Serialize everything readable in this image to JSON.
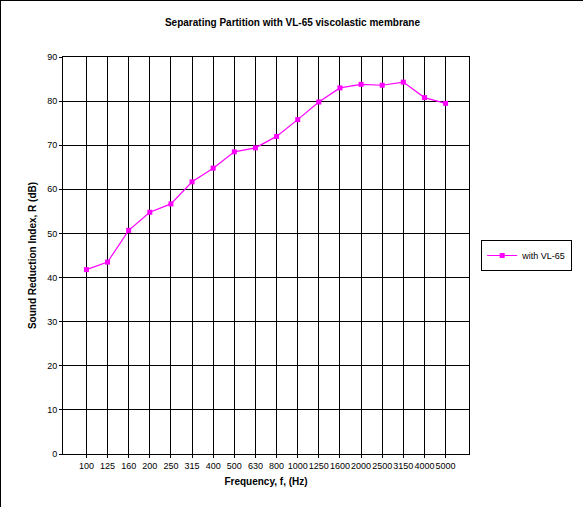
{
  "chart_data": {
    "type": "line",
    "title": "Separating Partition with VL-65 viscolastic membrane",
    "x_label": "Frequency, f, (Hz)",
    "y_label": "Sound Reduction Index, R (dB)",
    "categories": [
      "100",
      "125",
      "160",
      "200",
      "250",
      "315",
      "400",
      "500",
      "630",
      "800",
      "1000",
      "1250",
      "1600",
      "2000",
      "2500",
      "3150",
      "4000",
      "5000"
    ],
    "series": [
      {
        "name": "with VL-65",
        "color": "#ff00ff",
        "marker": "square",
        "values": [
          41.8,
          43.5,
          50.7,
          54.8,
          56.7,
          61.7,
          64.8,
          68.5,
          69.4,
          72.0,
          75.8,
          79.8,
          83.0,
          83.8,
          83.6,
          84.3,
          80.8,
          79.5
        ]
      }
    ],
    "ylim": [
      0,
      90
    ],
    "yticks": [
      0,
      10,
      20,
      30,
      40,
      50,
      60,
      70,
      80,
      90
    ],
    "grid": true,
    "legend": "right"
  }
}
